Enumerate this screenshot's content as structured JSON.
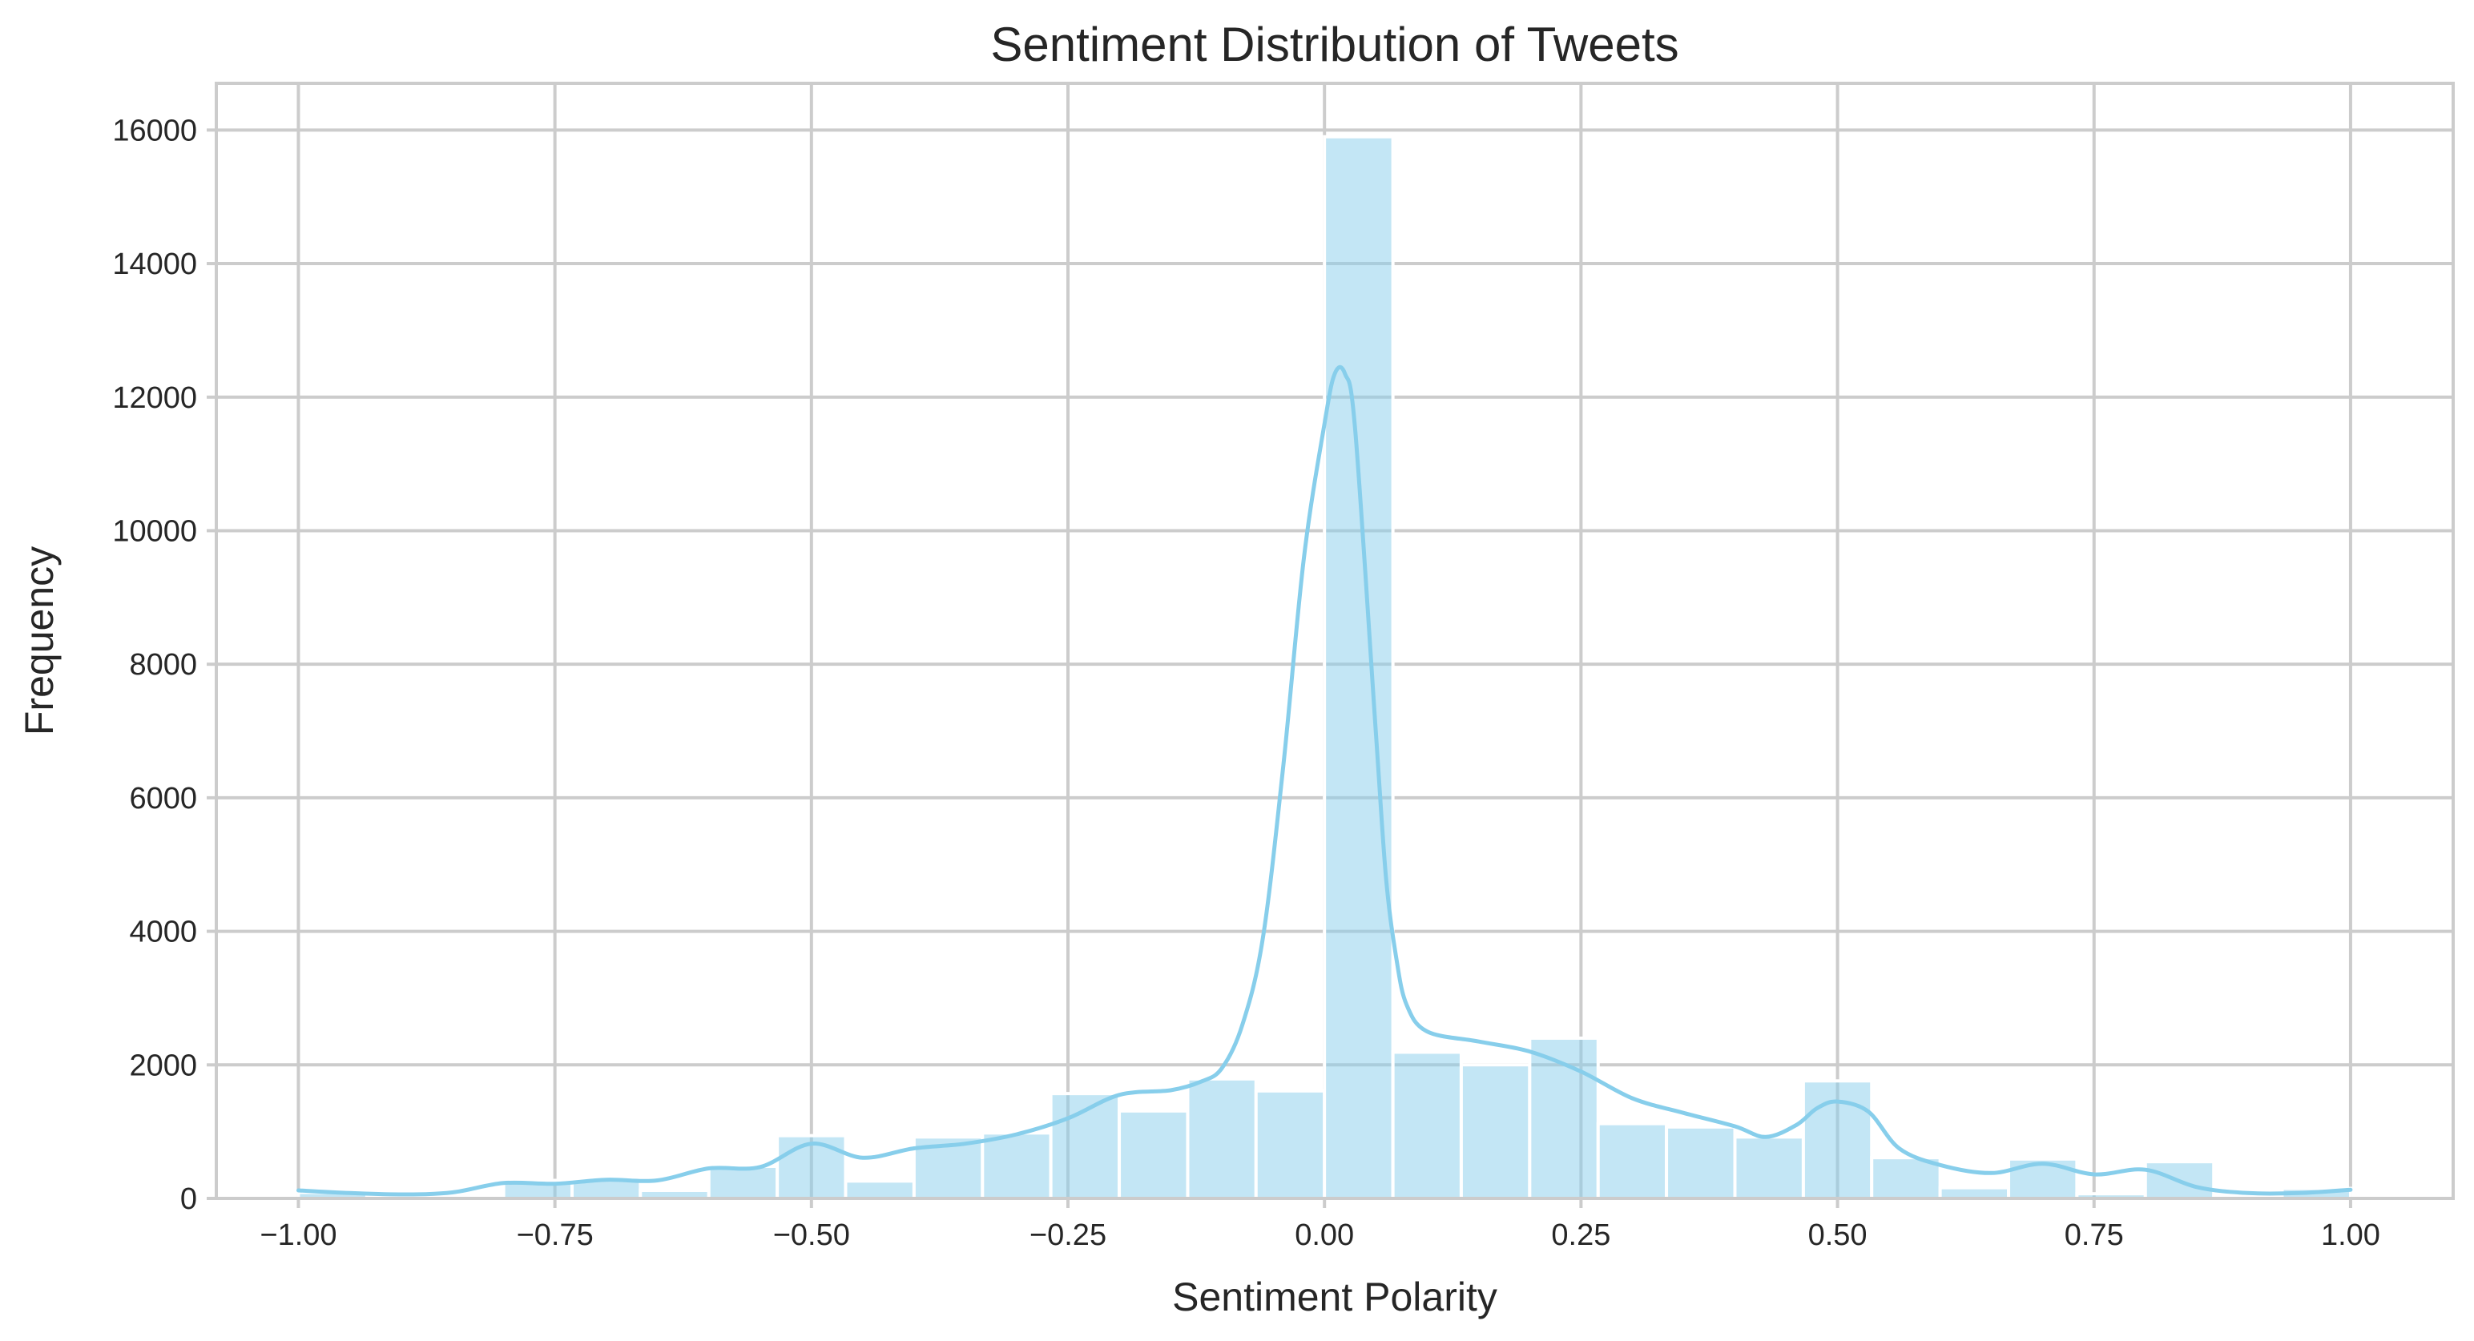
{
  "chart_data": {
    "type": "bar",
    "title": "Sentiment Distribution of Tweets",
    "xlabel": "Sentiment Polarity",
    "ylabel": "Frequency",
    "xlim": [
      -1.08,
      1.1
    ],
    "ylim": [
      0,
      16700
    ],
    "xticks": [
      -1.0,
      -0.75,
      -0.5,
      -0.25,
      0.0,
      0.25,
      0.5,
      0.75,
      1.0
    ],
    "xtick_labels": [
      "−1.00",
      "−0.75",
      "−0.50",
      "−0.25",
      "0.00",
      "0.25",
      "0.50",
      "0.75",
      "1.00"
    ],
    "yticks": [
      0,
      2000,
      4000,
      6000,
      8000,
      10000,
      12000,
      14000,
      16000
    ],
    "ytick_labels": [
      "0",
      "2000",
      "4000",
      "6000",
      "8000",
      "10000",
      "12000",
      "14000",
      "16000"
    ],
    "grid": true,
    "bar_color": "#87CEEB",
    "bar_opacity": 0.5,
    "kde_color": "#87CEEB",
    "bin_edges": [
      -1.0,
      -0.9333,
      -0.8667,
      -0.8,
      -0.7333,
      -0.6667,
      -0.6,
      -0.5333,
      -0.4667,
      -0.4,
      -0.3333,
      -0.2667,
      -0.2,
      -0.1333,
      -0.0667,
      0.0,
      0.0667,
      0.1333,
      0.2,
      0.2667,
      0.3333,
      0.4,
      0.4667,
      0.5333,
      0.6,
      0.6667,
      0.7333,
      0.8,
      0.8667,
      0.9333,
      1.0
    ],
    "values": [
      90,
      30,
      20,
      270,
      280,
      120,
      480,
      940,
      260,
      920,
      980,
      1570,
      1310,
      1790,
      1610,
      15900,
      2190,
      2000,
      2400,
      1120,
      1070,
      920,
      1760,
      610,
      160,
      590,
      70,
      550,
      40,
      150
    ],
    "kde": {
      "x": [
        -1.0,
        -0.95,
        -0.9,
        -0.85,
        -0.8,
        -0.75,
        -0.7,
        -0.65,
        -0.6,
        -0.55,
        -0.5,
        -0.45,
        -0.4,
        -0.35,
        -0.3,
        -0.25,
        -0.2,
        -0.15,
        -0.12,
        -0.1,
        -0.08,
        -0.06,
        -0.04,
        -0.02,
        0.0,
        0.01,
        0.02,
        0.03,
        0.05,
        0.06,
        0.07,
        0.08,
        0.1,
        0.15,
        0.2,
        0.25,
        0.3,
        0.35,
        0.4,
        0.43,
        0.46,
        0.48,
        0.5,
        0.53,
        0.56,
        0.6,
        0.65,
        0.7,
        0.75,
        0.8,
        0.85,
        0.9,
        0.95,
        1.0
      ],
      "y": [
        120,
        80,
        60,
        90,
        230,
        220,
        280,
        270,
        450,
        470,
        820,
        610,
        750,
        820,
        960,
        1200,
        1550,
        1620,
        1750,
        1950,
        2600,
        3900,
        6500,
        9600,
        11600,
        12350,
        12350,
        11500,
        7000,
        4800,
        3600,
        2900,
        2500,
        2350,
        2200,
        1900,
        1500,
        1280,
        1080,
        920,
        1100,
        1350,
        1450,
        1300,
        750,
        500,
        380,
        520,
        360,
        430,
        170,
        80,
        80,
        130
      ]
    }
  }
}
